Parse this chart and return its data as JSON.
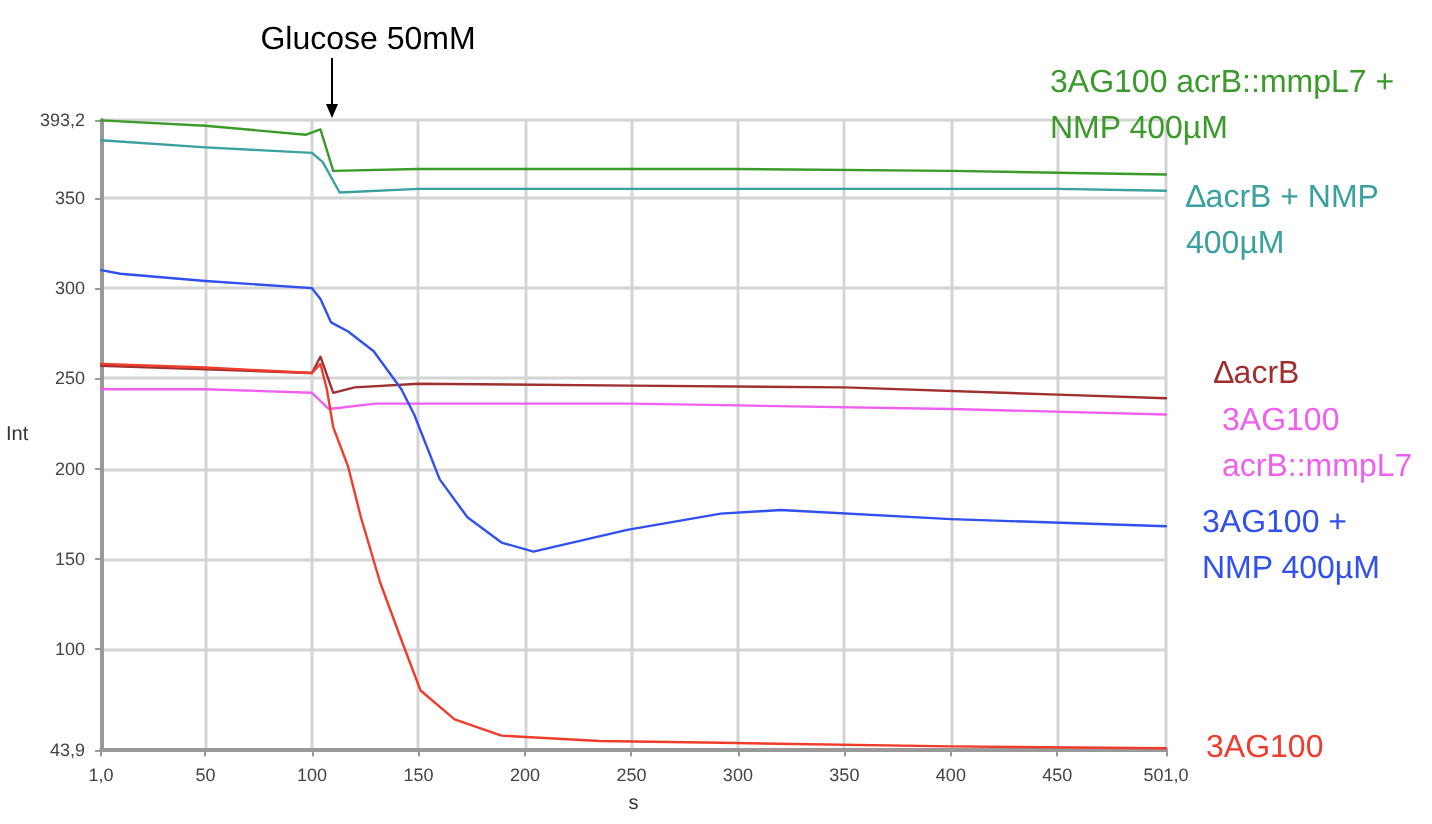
{
  "chart_data": {
    "type": "line",
    "xlabel": "s",
    "ylabel": "Int",
    "xlim": [
      1,
      501
    ],
    "ylim": [
      43.9,
      393.2
    ],
    "xticks": [
      {
        "value": 1,
        "label": "1,0"
      },
      50,
      100,
      150,
      200,
      250,
      300,
      350,
      400,
      450,
      {
        "value": 501,
        "label": "501,0"
      }
    ],
    "yticks": [
      {
        "value": 43.9,
        "label": "43,9"
      },
      100,
      150,
      200,
      250,
      300,
      350,
      {
        "value": 393.2,
        "label": "393,2"
      }
    ],
    "grid": true,
    "marker": "none",
    "line_style": "solid",
    "legend": false,
    "annotations": [
      "Glucose 50mM"
    ],
    "series": [
      {
        "name": "3AG100 acrB::mmpL7 + NMP 400µM",
        "color": "#3a9a2a",
        "x": [
          1,
          50,
          97,
          104,
          110,
          150,
          200,
          300,
          400,
          450,
          501
        ],
        "values": [
          393,
          390,
          385,
          388,
          365,
          366,
          366,
          366,
          365,
          364,
          363
        ]
      },
      {
        "name": "∆acrB + NMP 400µM",
        "color": "#3aa0a0",
        "x": [
          1,
          50,
          100,
          105,
          113,
          150,
          250,
          350,
          450,
          501
        ],
        "values": [
          382,
          378,
          375,
          370,
          353,
          355,
          355,
          355,
          355,
          354
        ]
      },
      {
        "name": "∆acrB",
        "color": "#a03030",
        "x": [
          1,
          50,
          100,
          104,
          110,
          120,
          150,
          250,
          350,
          450,
          501
        ],
        "values": [
          257,
          255,
          253,
          262,
          242,
          245,
          247,
          246,
          245,
          241,
          239
        ]
      },
      {
        "name": "3AG100 acrB::mmpL7",
        "color": "#f060f0",
        "x": [
          1,
          50,
          100,
          108,
          130,
          250,
          300,
          400,
          501
        ],
        "values": [
          244,
          244,
          242,
          233,
          236,
          236,
          235,
          233,
          230
        ]
      },
      {
        "name": "3AG100 + NMP 400µM",
        "color": "#3050f0",
        "x": [
          1,
          10,
          50,
          100,
          104,
          109,
          117,
          129,
          142,
          148,
          160,
          173,
          189,
          204,
          248,
          292,
          320,
          400,
          501
        ],
        "values": [
          310,
          308,
          304,
          300,
          294,
          281,
          276,
          265,
          244,
          230,
          194,
          173,
          159,
          154,
          166,
          175,
          177,
          172,
          168
        ]
      },
      {
        "name": "3AG100",
        "color": "#f03c2a",
        "x": [
          1,
          50,
          100,
          104,
          107,
          110,
          117,
          123,
          132,
          142,
          151,
          167,
          189,
          235,
          292,
          400,
          501
        ],
        "values": [
          258,
          256,
          253,
          258,
          244,
          223,
          201,
          173,
          137,
          105,
          77,
          61,
          52,
          49,
          48,
          46,
          45
        ]
      }
    ]
  }
}
